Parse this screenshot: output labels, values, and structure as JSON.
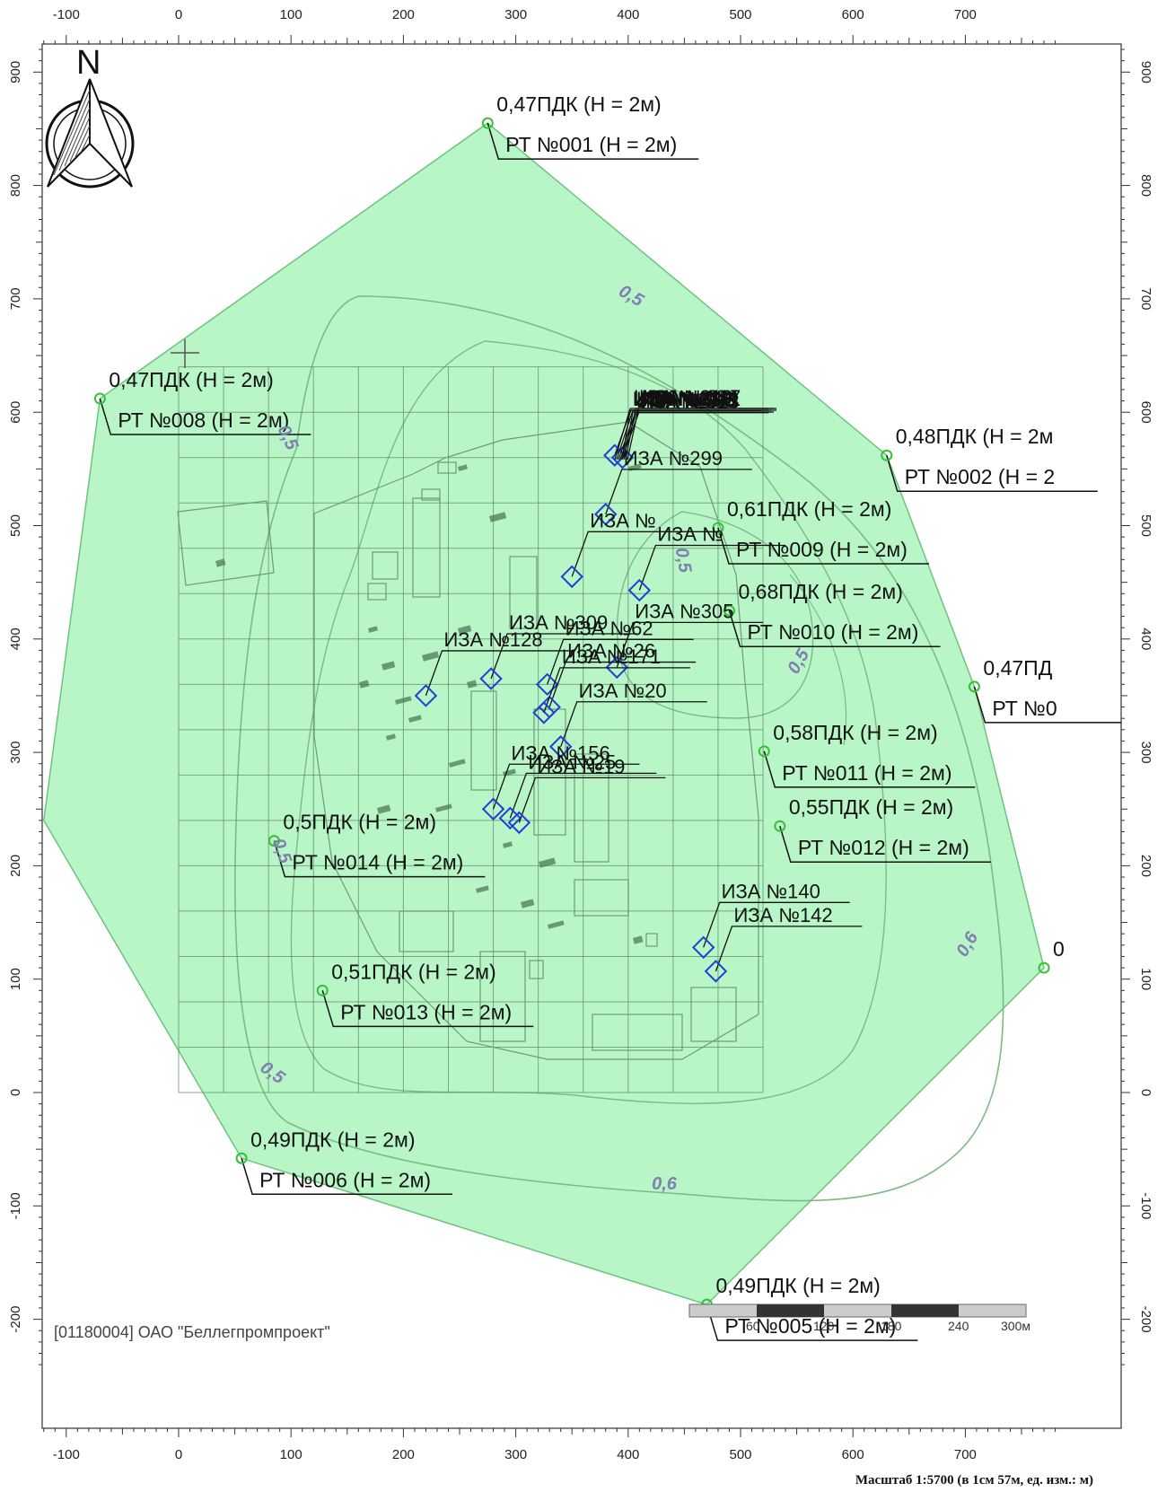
{
  "organization": "[01180004] ОАО \"Беллегпромпроект\"",
  "scale_text": "Масштаб 1:5700 (в 1см 57м, ед. изм.: м)",
  "north_label": "N",
  "axes": {
    "x_ticks": [
      "-100",
      "0",
      "100",
      "200",
      "300",
      "400",
      "500",
      "600",
      "700"
    ],
    "x_values": [
      -100,
      0,
      100,
      200,
      300,
      400,
      500,
      600,
      700
    ],
    "y_ticks": [
      "900",
      "800",
      "700",
      "600",
      "500",
      "400",
      "300",
      "200",
      "100",
      "0",
      "-100",
      "-200"
    ],
    "y_values": [
      900,
      800,
      700,
      600,
      500,
      400,
      300,
      200,
      100,
      0,
      -100,
      -200
    ]
  },
  "scale_bar": {
    "labels": [
      "60",
      "120",
      "180",
      "240",
      "300м"
    ]
  },
  "colors": {
    "zone_fill": "#b4f5c4",
    "zone_stroke": "#6dc37d",
    "source": "#1f3fd6",
    "point": "#34c234",
    "grid": "#5d8f66"
  },
  "isolines": [
    "0,5",
    "0,5",
    "0,5",
    "0,5",
    "0,6",
    "0,6",
    "0,5",
    "0,5"
  ],
  "calc_points": [
    {
      "x": 275,
      "y": 855,
      "value": "0,47ПДК (Н = 2м)",
      "name": "РТ №001 (Н = 2м)"
    },
    {
      "x": 630,
      "y": 562,
      "value": "0,48ПДК (Н = 2м",
      "name": "РТ №002 (Н = 2"
    },
    {
      "x": -70,
      "y": 612,
      "value": "0,47ПДК (Н = 2м)",
      "name": "РТ №008 (Н = 2м)"
    },
    {
      "x": 480,
      "y": 498,
      "value": "0,61ПДК (Н = 2м)",
      "name": "РТ №009 (Н = 2м)"
    },
    {
      "x": 490,
      "y": 425,
      "value": "0,68ПДК (Н = 2м)",
      "name": "РТ №010 (Н = 2м)"
    },
    {
      "x": 708,
      "y": 358,
      "value": "0,47ПД",
      "name": "РТ №0"
    },
    {
      "x": 521,
      "y": 301,
      "value": "0,58ПДК (Н = 2м)",
      "name": "РТ №011 (Н = 2м)"
    },
    {
      "x": 535,
      "y": 235,
      "value": "0,55ПДК (Н = 2м)",
      "name": "РТ №012 (Н = 2м)"
    },
    {
      "x": 85,
      "y": 222,
      "value": "0,5ПДК (Н = 2м)",
      "name": "РТ №014 (Н = 2м)"
    },
    {
      "x": 128,
      "y": 90,
      "value": "0,51ПДК (Н = 2м)",
      "name": "РТ №013 (Н = 2м)"
    },
    {
      "x": 56,
      "y": -58,
      "value": "0,49ПДК (Н = 2м)",
      "name": "РТ №006 (Н = 2м)"
    },
    {
      "x": 470,
      "y": -187,
      "value": "0,49ПДК (Н = 2м)",
      "name": "РТ №005 (Н = 2м)"
    },
    {
      "x": 770,
      "y": 110,
      "value": "0",
      "name": ""
    }
  ],
  "sources": [
    {
      "label": "ИЗА №315",
      "x": 388,
      "y": 562
    },
    {
      "label": "ИЗА №313",
      "x": 395,
      "y": 560
    },
    {
      "label": "ИЗА №299",
      "x": 380,
      "y": 510
    },
    {
      "label": "ИЗА №",
      "x": 350,
      "y": 455
    },
    {
      "label": "ИЗА №",
      "x": 410,
      "y": 443
    },
    {
      "label": "ИЗА №305",
      "x": 390,
      "y": 375
    },
    {
      "label": "ИЗА №128",
      "x": 220,
      "y": 350
    },
    {
      "label": "ИЗА №309",
      "x": 278,
      "y": 365
    },
    {
      "label": "ИЗА №62",
      "x": 328,
      "y": 360
    },
    {
      "label": "ИЗА №26",
      "x": 330,
      "y": 340
    },
    {
      "label": "ИЗА №171",
      "x": 325,
      "y": 335
    },
    {
      "label": "ИЗА №20",
      "x": 340,
      "y": 305
    },
    {
      "label": "ИЗА №25",
      "x": 295,
      "y": 242
    },
    {
      "label": "ИЗА №19",
      "x": 303,
      "y": 238
    },
    {
      "label": "ИЗА №156",
      "x": 280,
      "y": 250
    },
    {
      "label": "ИЗА №140",
      "x": 467,
      "y": 128
    },
    {
      "label": "ИЗА №142",
      "x": 478,
      "y": 107
    }
  ],
  "overlap_labels": [
    "ИЗА №319",
    "ИЗА №316",
    "ИЗА №318",
    "ИЗА №317",
    "ИЗА №132",
    "ИЗА №133",
    "ИЗА №134",
    "ИЗА №141"
  ]
}
